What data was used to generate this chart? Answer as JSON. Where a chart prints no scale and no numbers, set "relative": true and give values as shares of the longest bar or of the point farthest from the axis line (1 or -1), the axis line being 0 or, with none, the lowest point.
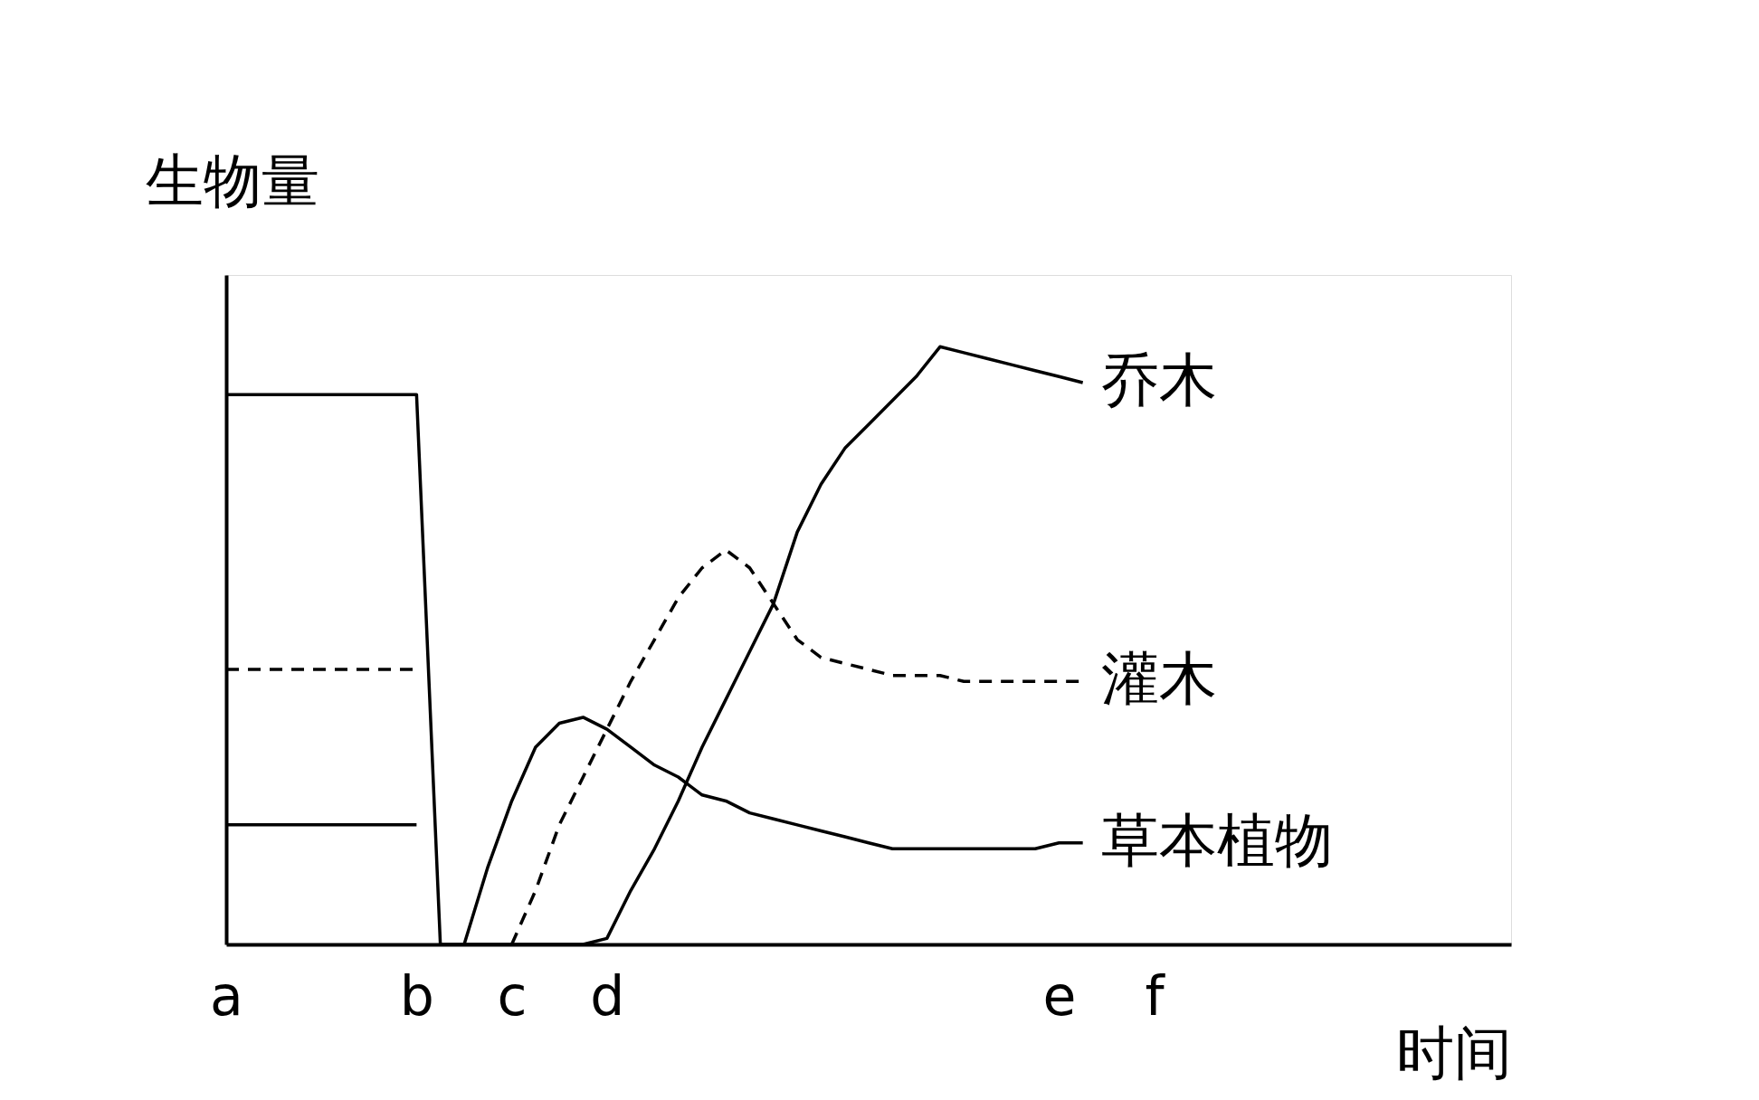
{
  "chart_data": {
    "type": "line",
    "relative": true,
    "xlabel": "时间",
    "ylabel": "生物量",
    "categories": [
      "a",
      null,
      null,
      null,
      null,
      null,
      null,
      null,
      "b",
      null,
      null,
      null,
      "c",
      null,
      null,
      null,
      "d",
      null,
      null,
      null,
      null,
      null,
      null,
      null,
      null,
      null,
      null,
      null,
      null,
      null,
      null,
      null,
      null,
      null,
      null,
      "e",
      null,
      null,
      null,
      "f",
      null,
      null,
      null,
      null,
      null,
      null,
      null,
      null,
      null,
      null,
      null,
      null,
      null,
      null,
      null
    ],
    "legend": false,
    "grid": false,
    "series": [
      {
        "name": "乔木",
        "color": "#000000",
        "line_style": "solid",
        "values": [
          0.92,
          0.92,
          0.92,
          0.92,
          0.92,
          0.92,
          0.92,
          0.92,
          0.92,
          0,
          0,
          0,
          0,
          0,
          0,
          0,
          0.01,
          0.09,
          0.16,
          0.24,
          0.33,
          0.41,
          0.49,
          0.57,
          0.69,
          0.77,
          0.83,
          0.87,
          0.91,
          0.95,
          1.0,
          0.99,
          0.98,
          0.97,
          0.96,
          0.95,
          0.94,
          null,
          null,
          null,
          null,
          null,
          null,
          null,
          null,
          null,
          null,
          null,
          null,
          null,
          null,
          null,
          null,
          null,
          null
        ]
      },
      {
        "name": "灌木",
        "color": "#000000",
        "line_style": "dashed",
        "values": [
          0.46,
          0.46,
          0.46,
          0.46,
          0.46,
          0.46,
          0.46,
          0.46,
          0.46,
          null,
          null,
          null,
          0,
          0.09,
          0.2,
          0.28,
          0.36,
          0.44,
          0.51,
          0.58,
          0.63,
          0.66,
          0.63,
          0.57,
          0.51,
          0.48,
          0.47,
          0.46,
          0.45,
          0.45,
          0.45,
          0.44,
          0.44,
          0.44,
          0.44,
          0.44,
          0.44,
          null,
          null,
          null,
          null,
          null,
          null,
          null,
          null,
          null,
          null,
          null,
          null,
          null,
          null,
          null,
          null,
          null,
          null
        ]
      },
      {
        "name": "草本植物",
        "color": "#000000",
        "line_style": "solid",
        "values": [
          0.2,
          0.2,
          0.2,
          0.2,
          0.2,
          0.2,
          0.2,
          0.2,
          0.2,
          null,
          0,
          0.13,
          0.24,
          0.33,
          0.37,
          0.38,
          0.36,
          0.33,
          0.3,
          0.28,
          0.25,
          0.24,
          0.22,
          0.21,
          0.2,
          0.19,
          0.18,
          0.17,
          0.16,
          0.16,
          0.16,
          0.16,
          0.16,
          0.16,
          0.16,
          0.17,
          0.17,
          null,
          null,
          null,
          null,
          null,
          null,
          null,
          null,
          null,
          null,
          null,
          null,
          null,
          null,
          null,
          null,
          null,
          null
        ]
      }
    ]
  }
}
